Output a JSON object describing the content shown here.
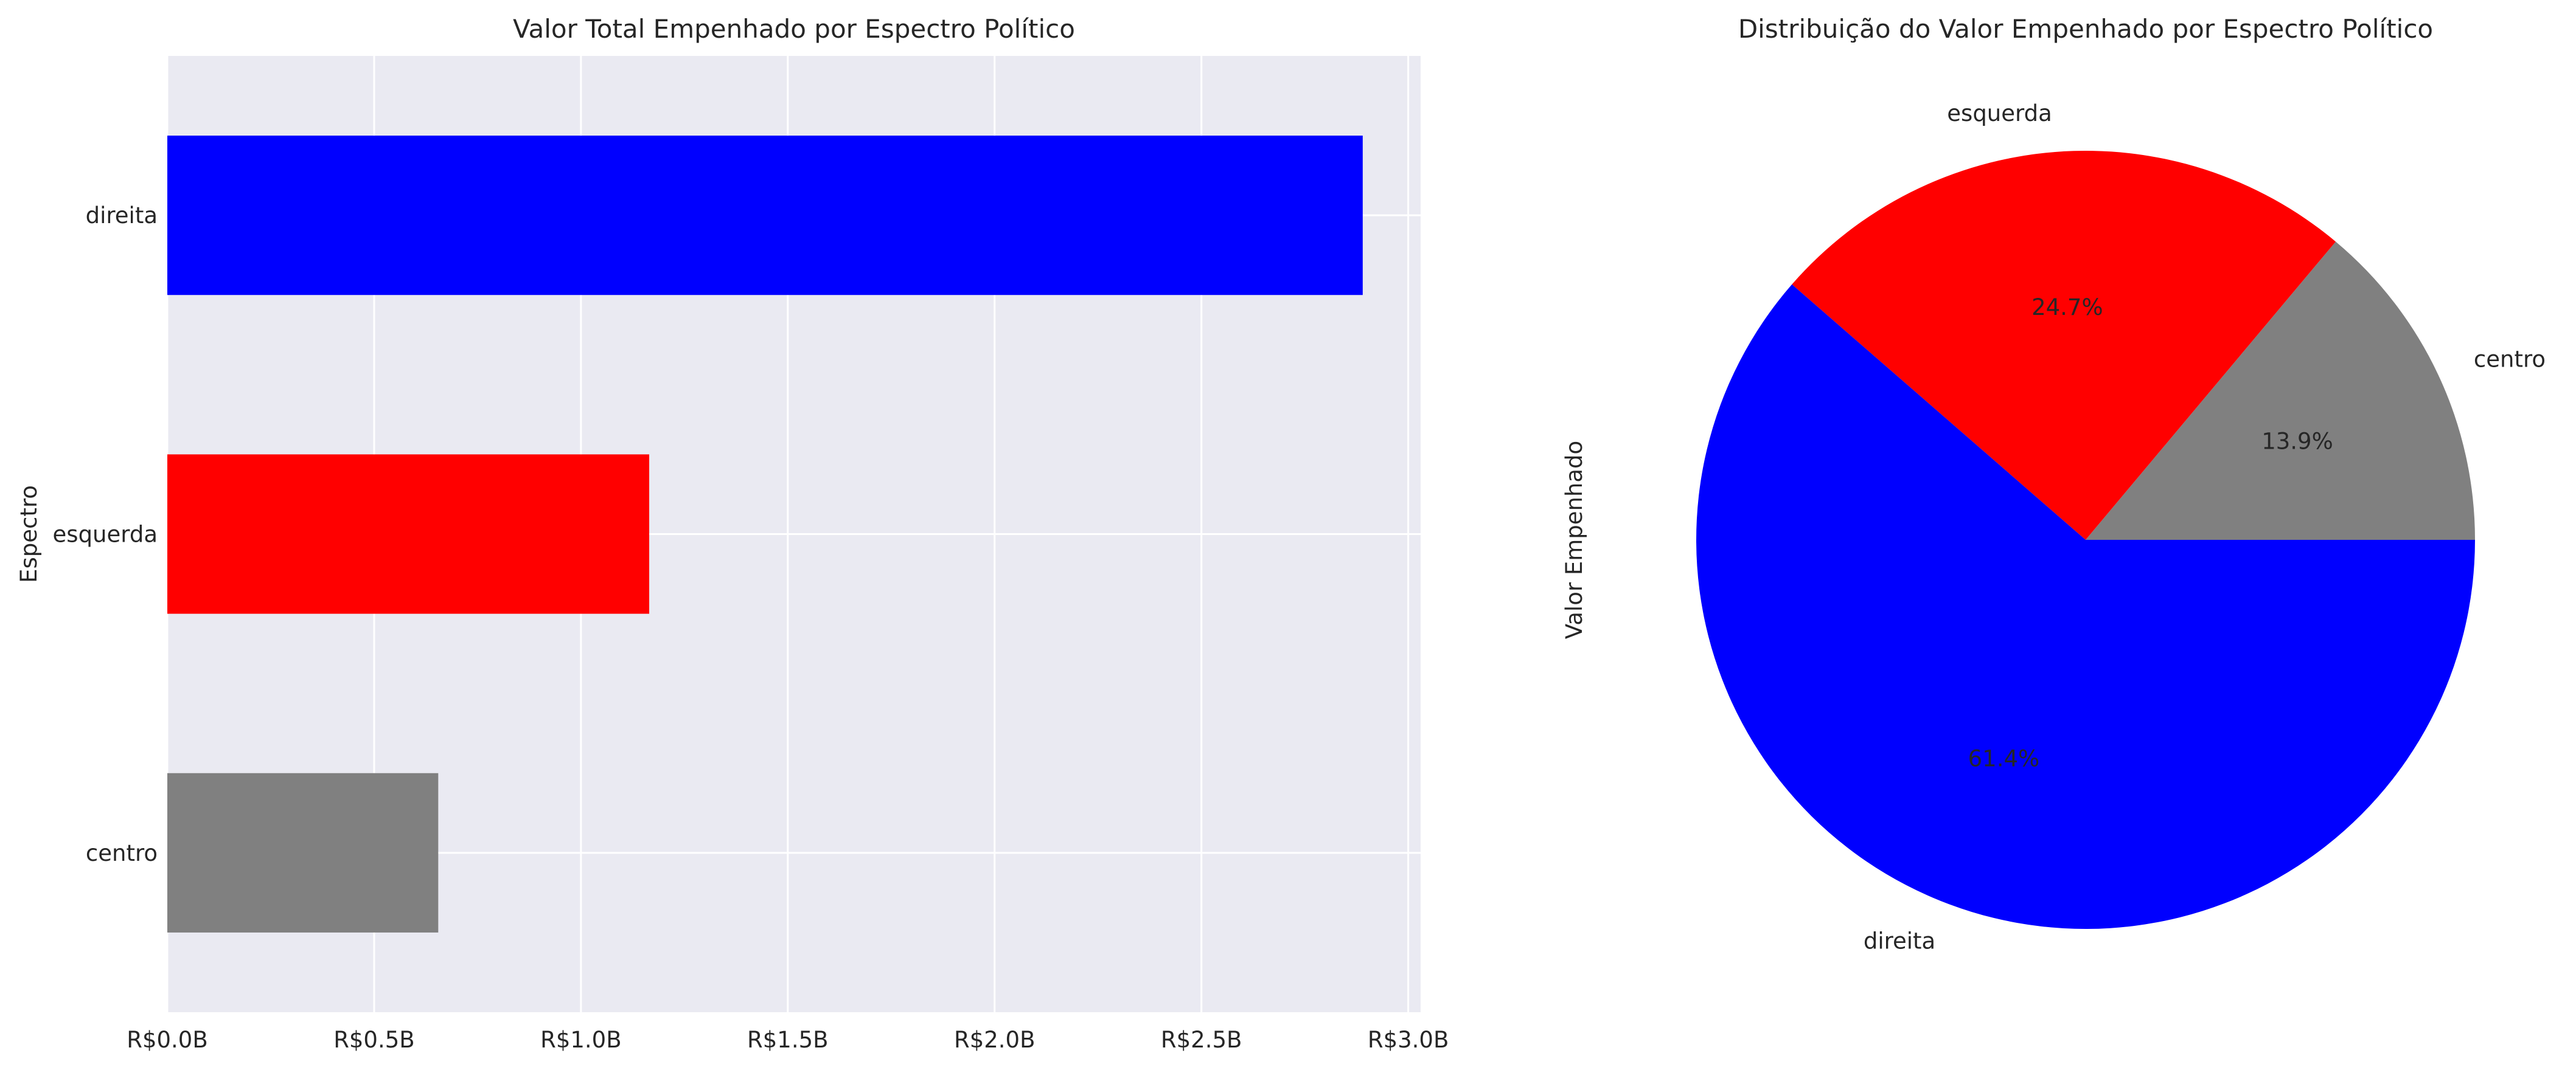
{
  "chart_data": [
    {
      "type": "bar",
      "orientation": "horizontal",
      "title": "Valor Total Empenhado por Espectro Político",
      "xlabel": "",
      "ylabel": "Espectro",
      "categories": [
        "direita",
        "esquerda",
        "centro"
      ],
      "values": [
        2.89,
        1.165,
        0.655
      ],
      "value_unit": "R$ billions",
      "colors": [
        "#0000ff",
        "#ff0000",
        "#808080"
      ],
      "xlim": [
        0,
        3.03
      ],
      "xticks": [
        0,
        0.5,
        1.0,
        1.5,
        2.0,
        2.5,
        3.0
      ],
      "xtick_labels": [
        "R$0.0B",
        "R$0.5B",
        "R$1.0B",
        "R$1.5B",
        "R$2.0B",
        "R$2.5B",
        "R$3.0B"
      ],
      "grid": true,
      "style": "seaborn-darkgrid",
      "background": "#eaeaf2"
    },
    {
      "type": "pie",
      "title": "Distribuição do Valor Empenhado por Espectro Político",
      "ylabel": "Valor Empenhado",
      "labels": [
        "centro",
        "esquerda",
        "direita"
      ],
      "values": [
        13.9,
        24.7,
        61.4
      ],
      "autopct_labels": [
        "13.9%",
        "24.7%",
        "61.4%"
      ],
      "colors": [
        "#808080",
        "#ff0000",
        "#0000ff"
      ]
    }
  ]
}
